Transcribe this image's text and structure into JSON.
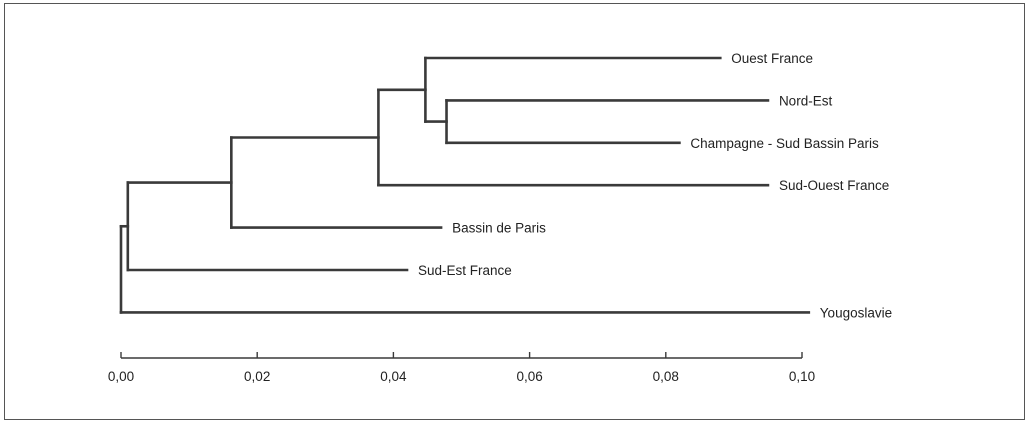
{
  "chart_data": {
    "type": "dendrogram",
    "title": "",
    "xlabel": "",
    "ylabel": "",
    "xlim": [
      0.0,
      0.1
    ],
    "ticks": [
      {
        "value": 0.0,
        "label": "0,00"
      },
      {
        "value": 0.02,
        "label": "0,02"
      },
      {
        "value": 0.04,
        "label": "0,04"
      },
      {
        "value": 0.06,
        "label": "0,06"
      },
      {
        "value": 0.08,
        "label": "0,08"
      },
      {
        "value": 0.1,
        "label": "0,10"
      }
    ],
    "leaves": [
      {
        "id": "ouest",
        "label": "Ouest France",
        "end": 0.088
      },
      {
        "id": "nordest",
        "label": "Nord-Est",
        "end": 0.095
      },
      {
        "id": "champagne",
        "label": "Champagne - Sud Bassin Paris",
        "end": 0.082
      },
      {
        "id": "sudouest",
        "label": "Sud-Ouest France",
        "end": 0.095
      },
      {
        "id": "bassin",
        "label": "Bassin de Paris",
        "end": 0.047
      },
      {
        "id": "sudest",
        "label": "Sud-Est France",
        "end": 0.042
      },
      {
        "id": "yougo",
        "label": "Yougoslavie",
        "end": 0.101
      }
    ],
    "nodes": [
      {
        "id": "n1",
        "height": 0.0478,
        "children": [
          "nordest",
          "champagne"
        ]
      },
      {
        "id": "n2",
        "height": 0.0447,
        "children": [
          "ouest",
          "n1"
        ]
      },
      {
        "id": "n3",
        "height": 0.0378,
        "children": [
          "n2",
          "sudouest"
        ]
      },
      {
        "id": "n4",
        "height": 0.0162,
        "children": [
          "n3",
          "bassin"
        ]
      },
      {
        "id": "n5",
        "height": 0.001,
        "children": [
          "n4",
          "sudest"
        ]
      },
      {
        "id": "n6",
        "height": 0.0,
        "children": [
          "n5",
          "yougo"
        ]
      }
    ],
    "grid": false
  }
}
